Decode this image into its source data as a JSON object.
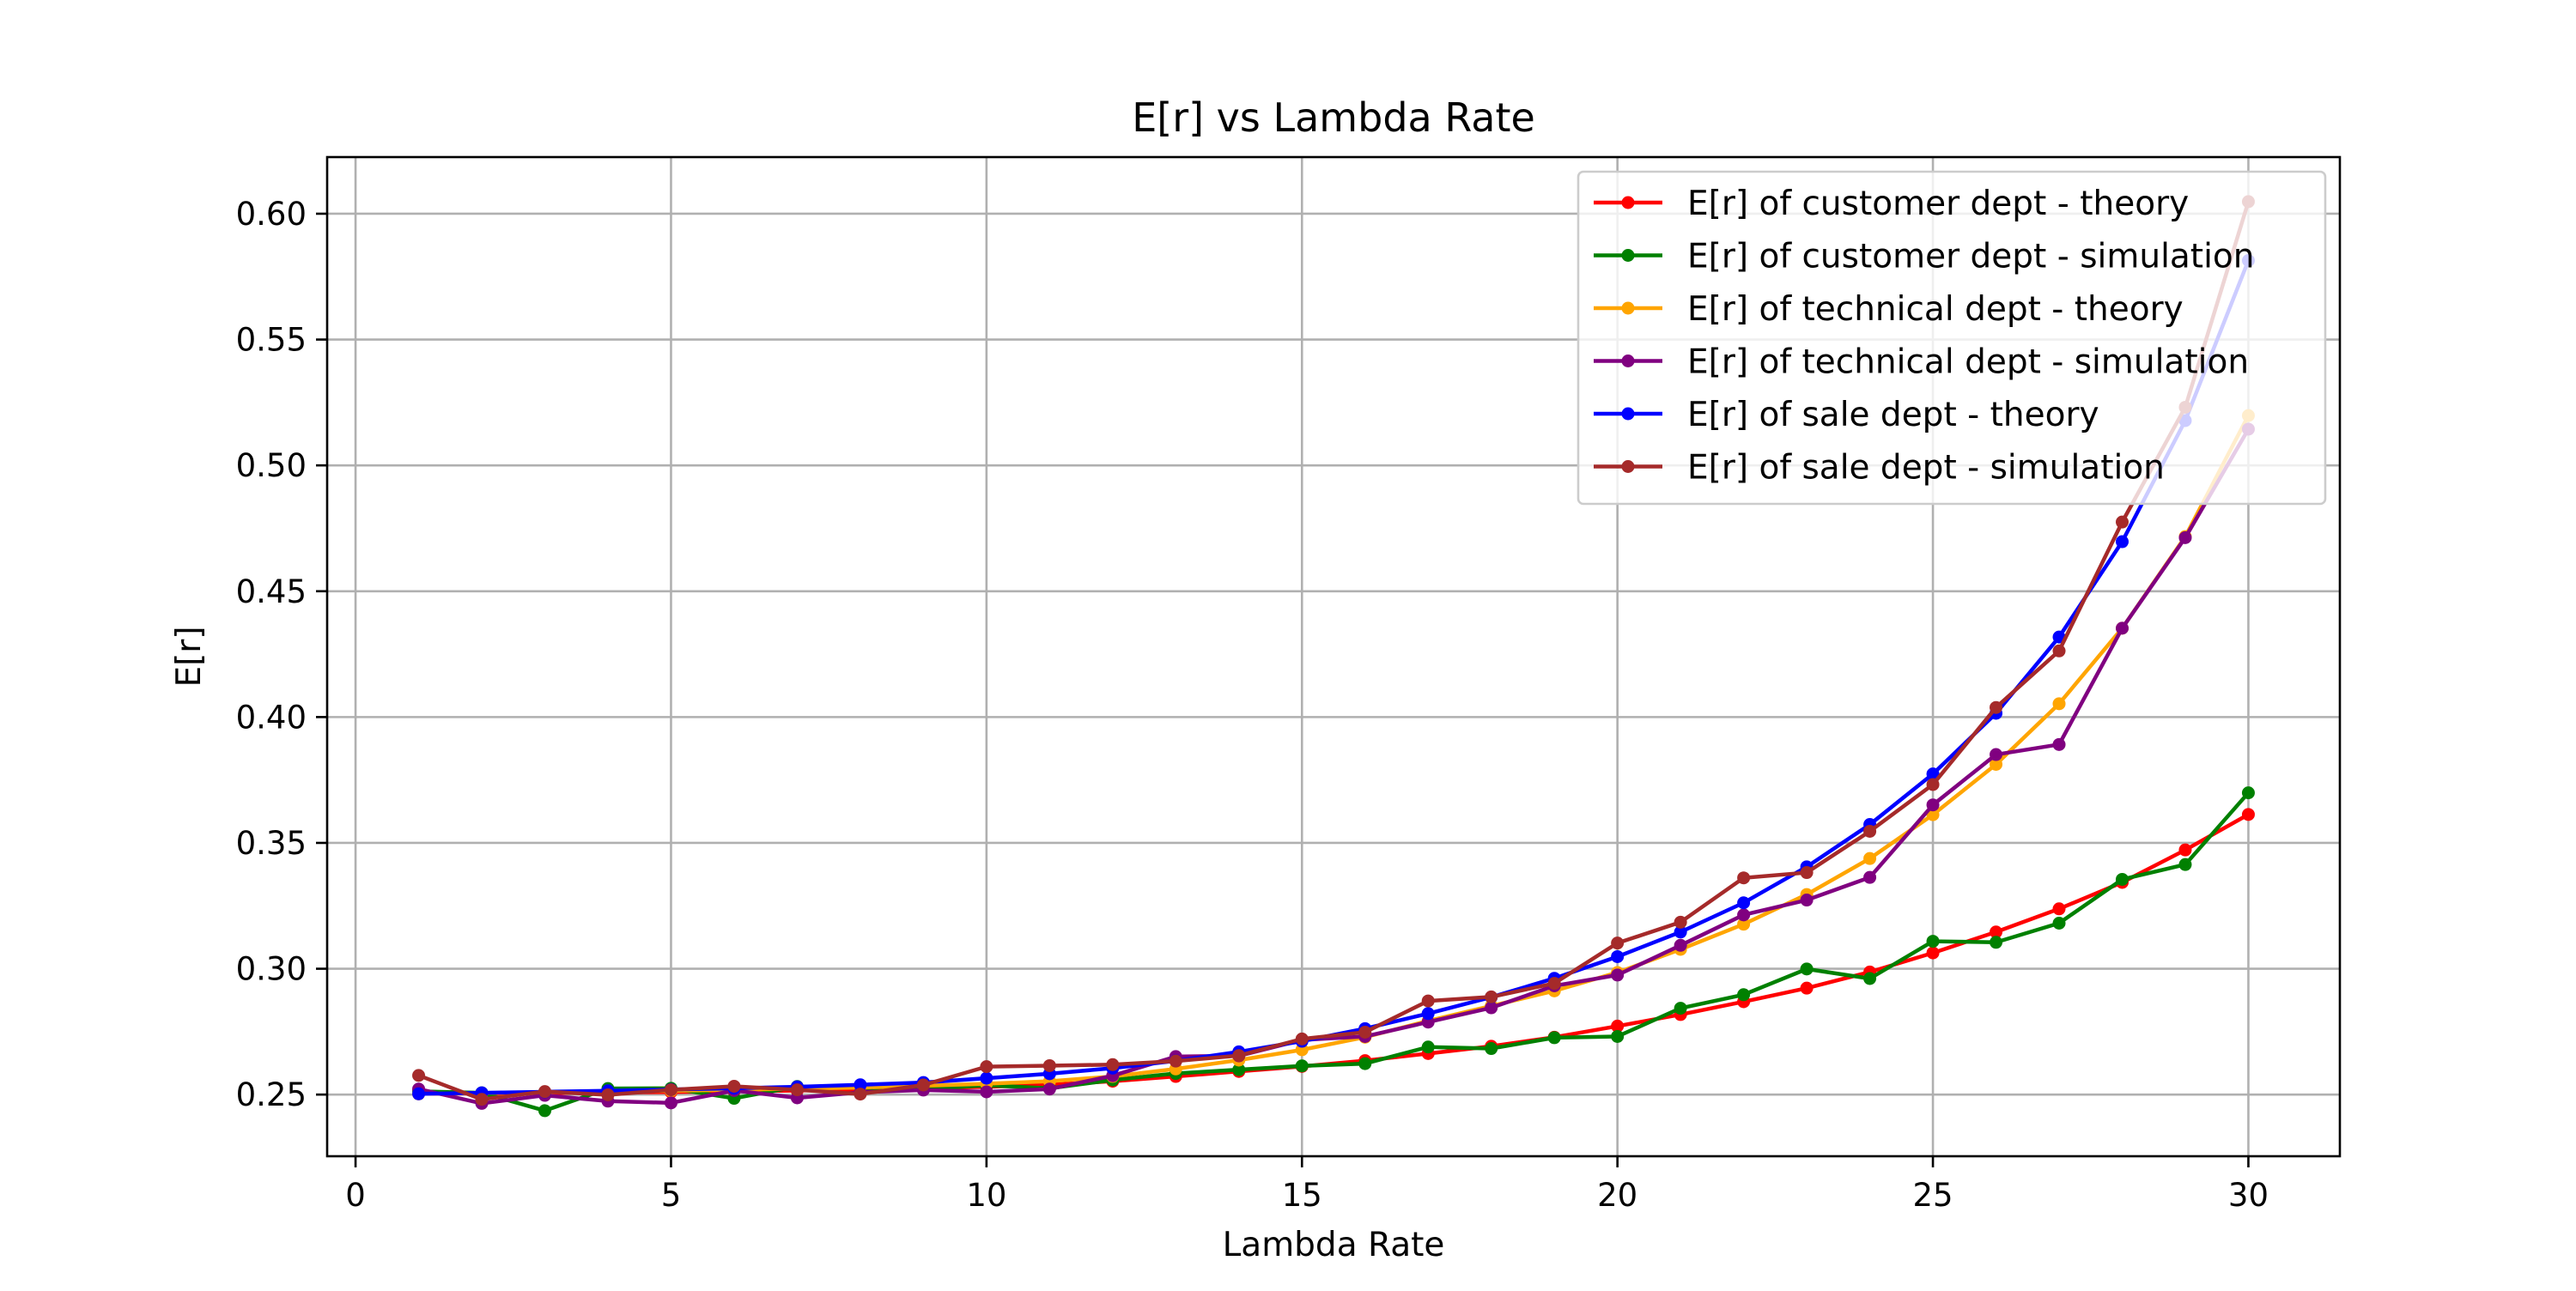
{
  "chart_data": {
    "type": "line",
    "title": "E[r] vs Lambda Rate",
    "xlabel": "Lambda Rate",
    "ylabel": "E[r]",
    "xlim": [
      -0.45,
      31.45
    ],
    "ylim": [
      0.2255,
      0.6225
    ],
    "xticks": [
      0,
      5,
      10,
      15,
      20,
      25,
      30
    ],
    "yticks": [
      0.25,
      0.3,
      0.35,
      0.4,
      0.45,
      0.5,
      0.55,
      0.6
    ],
    "grid": true,
    "legend_position": "top-right",
    "x": [
      1,
      2,
      3,
      4,
      5,
      6,
      7,
      8,
      9,
      10,
      11,
      12,
      13,
      14,
      15,
      16,
      17,
      18,
      19,
      20,
      21,
      22,
      23,
      24,
      25,
      26,
      27,
      28,
      29,
      30
    ],
    "series": [
      {
        "name": "E[r] of customer dept - theory",
        "color": "#ff0000",
        "values": [
          0.2503,
          0.2505,
          0.2506,
          0.2508,
          0.251,
          0.2513,
          0.2516,
          0.252,
          0.2525,
          0.2531,
          0.2539,
          0.2553,
          0.2572,
          0.2592,
          0.2612,
          0.2635,
          0.2663,
          0.2692,
          0.2728,
          0.2772,
          0.2818,
          0.2869,
          0.2923,
          0.2987,
          0.3063,
          0.3146,
          0.3238,
          0.3343,
          0.3472,
          0.3613
        ]
      },
      {
        "name": "E[r] of customer dept - simulation",
        "color": "#008000",
        "values": [
          0.2513,
          0.2507,
          0.2436,
          0.2524,
          0.2525,
          0.2485,
          0.2532,
          0.2527,
          0.2521,
          0.2537,
          0.2525,
          0.2558,
          0.2584,
          0.2599,
          0.2614,
          0.2623,
          0.2689,
          0.2683,
          0.2726,
          0.2731,
          0.2843,
          0.2897,
          0.2999,
          0.2961,
          0.3109,
          0.3105,
          0.3181,
          0.3355,
          0.3414,
          0.3699
        ]
      },
      {
        "name": "E[r] of technical dept - theory",
        "color": "#ffa500",
        "values": [
          0.2503,
          0.2506,
          0.2509,
          0.2512,
          0.2515,
          0.2519,
          0.2523,
          0.2528,
          0.2535,
          0.2543,
          0.2553,
          0.2572,
          0.2602,
          0.2637,
          0.2678,
          0.2728,
          0.2793,
          0.2852,
          0.2912,
          0.2985,
          0.3077,
          0.3177,
          0.3295,
          0.3438,
          0.3612,
          0.3812,
          0.4053,
          0.4353,
          0.4717,
          0.5198
        ]
      },
      {
        "name": "E[r] of technical dept - simulation",
        "color": "#800080",
        "values": [
          0.2522,
          0.2465,
          0.2497,
          0.2474,
          0.2467,
          0.2516,
          0.2487,
          0.2509,
          0.2518,
          0.2511,
          0.2522,
          0.2575,
          0.2651,
          0.2654,
          0.2717,
          0.2731,
          0.2788,
          0.2845,
          0.2932,
          0.2975,
          0.3093,
          0.3214,
          0.3273,
          0.3363,
          0.3651,
          0.3851,
          0.3891,
          0.4353,
          0.4713,
          0.5144
        ]
      },
      {
        "name": "E[r] of sale dept - theory",
        "color": "#0000ff",
        "values": [
          0.2503,
          0.2507,
          0.2511,
          0.2515,
          0.252,
          0.2525,
          0.2531,
          0.2539,
          0.2548,
          0.2565,
          0.2583,
          0.2605,
          0.2634,
          0.267,
          0.2712,
          0.2762,
          0.2822,
          0.2887,
          0.2962,
          0.3048,
          0.3146,
          0.3262,
          0.3405,
          0.3573,
          0.3774,
          0.4015,
          0.4318,
          0.4697,
          0.5178,
          0.5814
        ]
      },
      {
        "name": "E[r] of sale dept - simulation",
        "color": "#a52a2a",
        "values": [
          0.2576,
          0.2481,
          0.2512,
          0.2499,
          0.2519,
          0.2533,
          0.2519,
          0.2502,
          0.2538,
          0.2611,
          0.2615,
          0.2619,
          0.2633,
          0.2655,
          0.2721,
          0.2748,
          0.2872,
          0.2888,
          0.2942,
          0.3102,
          0.3185,
          0.3361,
          0.3382,
          0.3546,
          0.3732,
          0.4038,
          0.4263,
          0.4775,
          0.5231,
          0.6048
        ]
      }
    ]
  }
}
